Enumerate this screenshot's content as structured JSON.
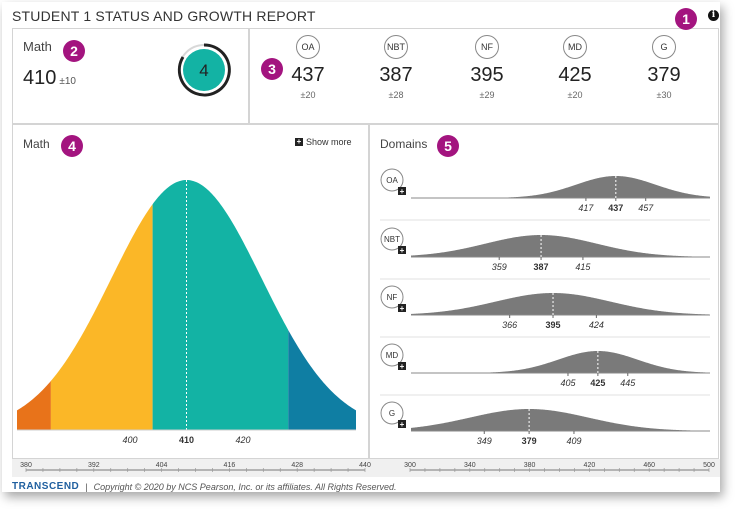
{
  "header": {
    "title": "STUDENT 1 STATUS AND GROWTH REPORT",
    "info_icon": "info-icon"
  },
  "badges": [
    "1",
    "2",
    "3",
    "4",
    "5"
  ],
  "summary": {
    "subject": "Math",
    "score": "410",
    "sem": "±10",
    "level": "4"
  },
  "domains": [
    {
      "code": "OA",
      "score": "437",
      "sem": "±20",
      "low": "417",
      "high": "457",
      "value": 437,
      "err": 20
    },
    {
      "code": "NBT",
      "score": "387",
      "sem": "±28",
      "low": "359",
      "high": "415",
      "value": 387,
      "err": 28
    },
    {
      "code": "NF",
      "score": "395",
      "sem": "±29",
      "low": "366",
      "high": "424",
      "value": 395,
      "err": 29
    },
    {
      "code": "MD",
      "score": "425",
      "sem": "±20",
      "low": "405",
      "high": "445",
      "value": 425,
      "err": 20
    },
    {
      "code": "G",
      "score": "379",
      "sem": "±30",
      "low": "349",
      "high": "409",
      "value": 379,
      "err": 30
    }
  ],
  "left_panel": {
    "title": "Math",
    "show_more": "Show more"
  },
  "right_panel": {
    "title": "Domains"
  },
  "chart_data": [
    {
      "type": "area",
      "title": "Math",
      "distribution": {
        "mean": 410,
        "sem": 10
      },
      "labels": {
        "low": "400",
        "mean": "410",
        "high": "420"
      },
      "axis": {
        "ticks": [
          "380",
          "392",
          "404",
          "416",
          "428",
          "440"
        ],
        "range": [
          380,
          440
        ]
      },
      "bands": [
        {
          "from": 380,
          "to": 386,
          "color": "#e8731a"
        },
        {
          "from": 386,
          "to": 404,
          "color": "#fbb727"
        },
        {
          "from": 404,
          "to": 428,
          "color": "#13b3a4"
        },
        {
          "from": 428,
          "to": 440,
          "color": "#0f7ea3"
        }
      ]
    },
    {
      "type": "area",
      "title": "Domains",
      "axis": {
        "ticks": [
          "300",
          "340",
          "380",
          "420",
          "460",
          "500"
        ],
        "range": [
          300,
          500
        ]
      },
      "color": "#7a7a7a"
    }
  ],
  "footer": {
    "logo": "TRANSCEND",
    "separator": "|",
    "copyright": "Copyright © 2020 by NCS Pearson, Inc. or its affiliates. All Rights Reserved."
  }
}
